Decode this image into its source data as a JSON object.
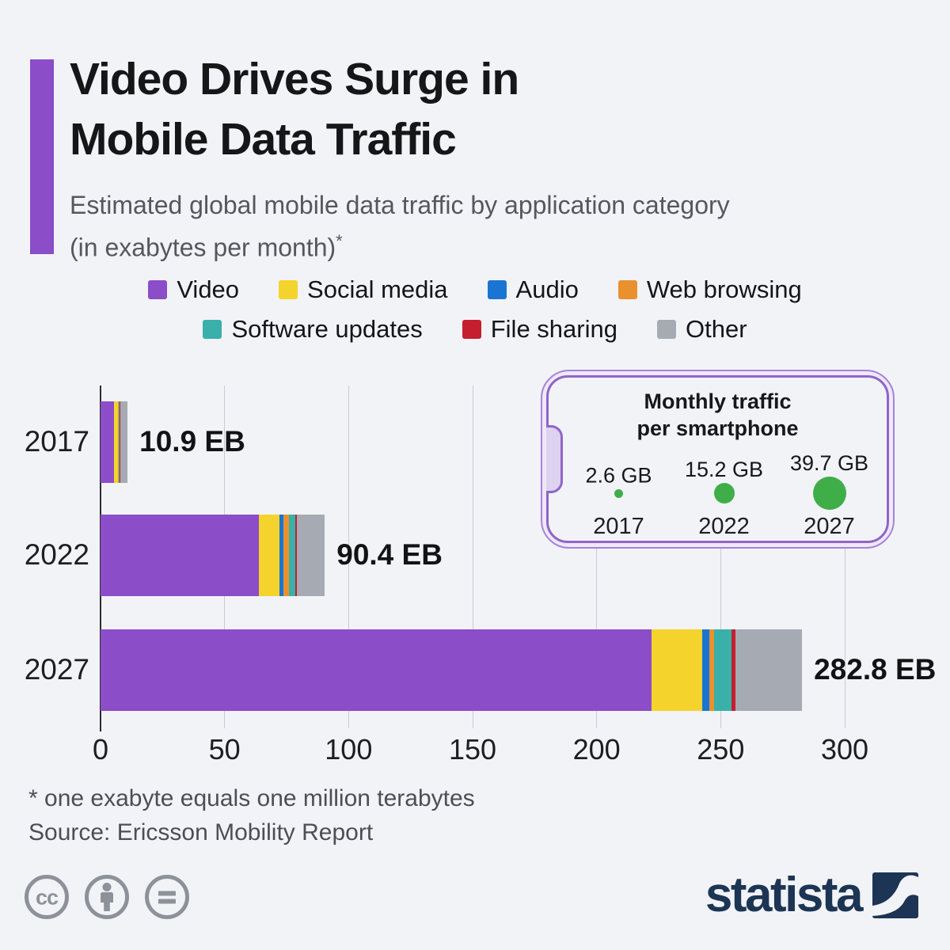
{
  "header": {
    "title_line1": "Video Drives Surge in",
    "title_line2": "Mobile Data Traffic",
    "subtitle_line1": "Estimated global mobile data traffic by application category",
    "subtitle_line2": "(in exabytes per month)",
    "subtitle_footnote_marker": "*",
    "accent_color": "#8b4dc8"
  },
  "chart_data": {
    "type": "bar",
    "orientation": "horizontal",
    "stacked": true,
    "title": "Estimated global mobile data traffic by application category (in exabytes per month)",
    "unit": "EB per month",
    "categories": [
      "2017",
      "2022",
      "2027"
    ],
    "totals_eb": [
      10.9,
      90.4,
      282.8
    ],
    "total_labels": [
      "10.9 EB",
      "90.4 EB",
      "282.8 EB"
    ],
    "series": [
      {
        "name": "Video",
        "color": "#8b4dc8",
        "values": [
          5.5,
          63.8,
          222.0
        ]
      },
      {
        "name": "Social media",
        "color": "#f5d32d",
        "values": [
          1.4,
          8.3,
          20.4
        ]
      },
      {
        "name": "Audio",
        "color": "#1a75d2",
        "values": [
          0.2,
          1.6,
          2.9
        ]
      },
      {
        "name": "Web browsing",
        "color": "#e9902f",
        "values": [
          0.4,
          2.2,
          2.2
        ]
      },
      {
        "name": "Software updates",
        "color": "#39b0a9",
        "values": [
          0.3,
          2.6,
          7.0
        ]
      },
      {
        "name": "File sharing",
        "color": "#c51f2f",
        "values": [
          0.3,
          0.6,
          1.6
        ]
      },
      {
        "name": "Other",
        "color": "#a6abb3",
        "values": [
          2.8,
          11.3,
          26.7
        ]
      }
    ],
    "xlim": [
      0,
      300
    ],
    "x_ticks": [
      0,
      50,
      100,
      150,
      200,
      250,
      300
    ],
    "grid": true,
    "legend_position": "top",
    "legend_rows": [
      [
        0,
        1,
        2,
        3
      ],
      [
        4,
        5,
        6
      ]
    ]
  },
  "inset": {
    "title_line1": "Monthly traffic",
    "title_line2": "per smartphone",
    "circle_color": "#3fae49",
    "items": [
      {
        "value_label": "2.6 GB",
        "value_gb": 2.6,
        "year": "2017"
      },
      {
        "value_label": "15.2 GB",
        "value_gb": 15.2,
        "year": "2022"
      },
      {
        "value_label": "39.7 GB",
        "value_gb": 39.7,
        "year": "2027"
      }
    ]
  },
  "footer": {
    "footnote": "* one exabyte equals one million terabytes",
    "source": "Source: Ericsson Mobility Report",
    "license_icons": [
      "cc",
      "attribution",
      "no-derivatives"
    ],
    "brand": "statista"
  }
}
